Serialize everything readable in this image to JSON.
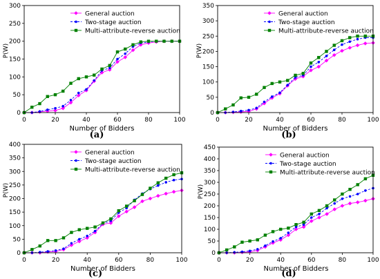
{
  "chart_data": [
    {
      "type": "line",
      "caption": "(a)",
      "xlabel": "Number of Bidders",
      "ylabel": "P(W)",
      "xlim": [
        0,
        100
      ],
      "ylim": [
        0,
        300
      ],
      "xticks": [
        0,
        20,
        40,
        60,
        80,
        100
      ],
      "yticks": [
        0,
        50,
        100,
        150,
        200,
        250,
        300
      ],
      "legend": "top-left",
      "x": [
        0,
        5,
        10,
        15,
        20,
        25,
        30,
        35,
        40,
        45,
        50,
        55,
        60,
        65,
        70,
        75,
        80,
        85,
        90,
        95,
        100
      ],
      "series": [
        {
          "name": "General auction",
          "color": "#ff00ff",
          "marker": "diamond",
          "values": [
            0,
            0,
            2,
            4,
            6,
            12,
            28,
            48,
            62,
            88,
            112,
            120,
            142,
            155,
            175,
            190,
            195,
            198,
            200,
            200,
            200
          ]
        },
        {
          "name": "Two-stage auction",
          "color": "#0000ff",
          "marker": "circle",
          "values": [
            0,
            0,
            3,
            8,
            12,
            18,
            35,
            55,
            65,
            90,
            118,
            125,
            150,
            165,
            185,
            195,
            198,
            200,
            200,
            200,
            200
          ]
        },
        {
          "name": "Multi-attribute-reverse auction",
          "color": "#008000",
          "marker": "square",
          "values": [
            0,
            15,
            25,
            45,
            50,
            60,
            82,
            95,
            100,
            105,
            122,
            132,
            170,
            178,
            190,
            198,
            200,
            200,
            200,
            200,
            200
          ]
        }
      ]
    },
    {
      "type": "line",
      "caption": "(b)",
      "xlabel": "Number of Bidders",
      "ylabel": "P(W)",
      "xlim": [
        0,
        100
      ],
      "ylim": [
        0,
        350
      ],
      "xticks": [
        0,
        20,
        40,
        60,
        80,
        100
      ],
      "yticks": [
        0,
        50,
        100,
        150,
        200,
        250,
        300,
        350
      ],
      "legend": "top-left",
      "x": [
        0,
        5,
        10,
        15,
        20,
        25,
        30,
        35,
        40,
        45,
        50,
        55,
        60,
        65,
        70,
        75,
        80,
        85,
        90,
        95,
        100
      ],
      "series": [
        {
          "name": "General auction",
          "color": "#ff00ff",
          "marker": "diamond",
          "values": [
            0,
            0,
            1,
            2,
            4,
            12,
            30,
            48,
            62,
            88,
            110,
            118,
            138,
            150,
            170,
            188,
            202,
            212,
            220,
            226,
            228
          ]
        },
        {
          "name": "Two-stage auction",
          "color": "#0000ff",
          "marker": "circle",
          "values": [
            0,
            0,
            2,
            5,
            8,
            15,
            35,
            52,
            65,
            90,
            115,
            122,
            150,
            165,
            185,
            205,
            222,
            232,
            240,
            245,
            245
          ]
        },
        {
          "name": "Multi-attribute-reverse auction",
          "color": "#008000",
          "marker": "square",
          "values": [
            0,
            12,
            25,
            48,
            50,
            60,
            82,
            95,
            100,
            105,
            122,
            128,
            162,
            180,
            200,
            220,
            235,
            245,
            250,
            250,
            250
          ]
        }
      ]
    },
    {
      "type": "line",
      "caption": "(c)",
      "xlabel": "Number of Bidders",
      "ylabel": "P(W)",
      "xlim": [
        0,
        100
      ],
      "ylim": [
        0,
        400
      ],
      "xticks": [
        0,
        20,
        40,
        60,
        80,
        100
      ],
      "yticks": [
        0,
        50,
        100,
        150,
        200,
        250,
        300,
        350,
        400
      ],
      "legend": "top-left",
      "x": [
        0,
        5,
        10,
        15,
        20,
        25,
        30,
        35,
        40,
        45,
        50,
        55,
        60,
        65,
        70,
        75,
        80,
        85,
        90,
        95,
        100
      ],
      "series": [
        {
          "name": "General auction",
          "color": "#ff00ff",
          "marker": "diamond",
          "values": [
            0,
            0,
            0,
            3,
            5,
            12,
            28,
            42,
            55,
            75,
            105,
            110,
            135,
            152,
            168,
            190,
            200,
            210,
            218,
            225,
            230
          ]
        },
        {
          "name": "Two-stage auction",
          "color": "#0000ff",
          "marker": "circle",
          "values": [
            0,
            0,
            2,
            5,
            8,
            15,
            35,
            50,
            62,
            80,
            108,
            118,
            148,
            165,
            195,
            218,
            235,
            248,
            260,
            268,
            272
          ]
        },
        {
          "name": "Multi-attribute-reverse auction",
          "color": "#008000",
          "marker": "square",
          "values": [
            0,
            12,
            25,
            45,
            45,
            55,
            75,
            85,
            90,
            95,
            110,
            125,
            155,
            172,
            192,
            215,
            238,
            258,
            275,
            288,
            295
          ]
        }
      ]
    },
    {
      "type": "line",
      "caption": "(d)",
      "xlabel": "Number of Bidders",
      "ylabel": "P(W)",
      "xlim": [
        0,
        100
      ],
      "ylim": [
        0,
        450
      ],
      "xticks": [
        0,
        20,
        40,
        60,
        80,
        100
      ],
      "yticks": [
        0,
        50,
        100,
        150,
        200,
        250,
        300,
        350,
        400,
        450
      ],
      "legend": "top-left",
      "x": [
        0,
        5,
        10,
        15,
        20,
        25,
        30,
        35,
        40,
        45,
        50,
        55,
        60,
        65,
        70,
        75,
        80,
        85,
        90,
        95,
        100
      ],
      "series": [
        {
          "name": "General auction",
          "color": "#ff00ff",
          "marker": "diamond",
          "values": [
            0,
            0,
            0,
            2,
            4,
            10,
            25,
            42,
            55,
            75,
            100,
            110,
            135,
            150,
            165,
            185,
            200,
            210,
            215,
            222,
            230
          ]
        },
        {
          "name": "Two-stage auction",
          "color": "#0000ff",
          "marker": "circle",
          "values": [
            0,
            0,
            2,
            4,
            8,
            15,
            30,
            48,
            62,
            85,
            110,
            120,
            150,
            165,
            190,
            210,
            230,
            240,
            250,
            265,
            275
          ]
        },
        {
          "name": "Multi-attribute-reverse auction",
          "color": "#008000",
          "marker": "square",
          "values": [
            0,
            12,
            25,
            45,
            50,
            55,
            75,
            90,
            100,
            105,
            120,
            130,
            165,
            180,
            200,
            225,
            250,
            270,
            290,
            315,
            330
          ]
        }
      ]
    }
  ]
}
